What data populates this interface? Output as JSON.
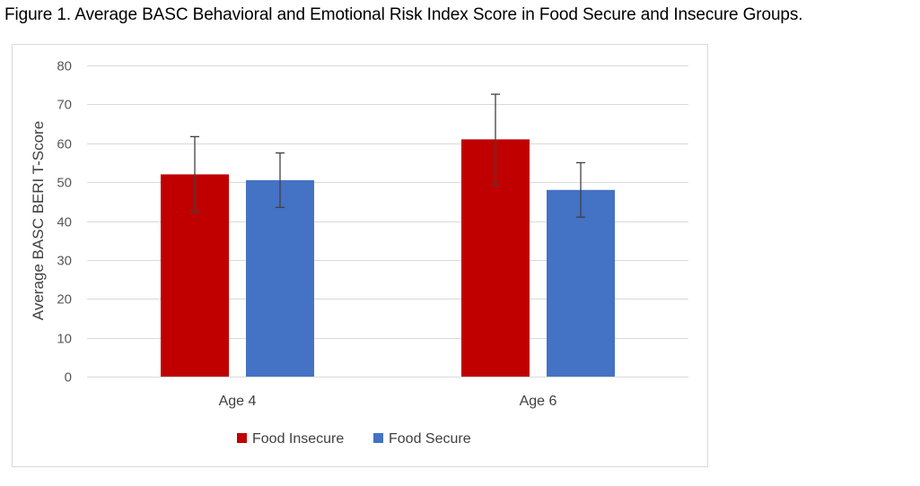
{
  "caption": "Figure 1. Average BASC Behavioral and Emotional Risk Index Score in Food Secure and Insecure Groups.",
  "chart_data": {
    "type": "bar",
    "categories": [
      "Age 4",
      "Age 6"
    ],
    "ylabel": "Average BASC BERI T-Score",
    "xlabel": "",
    "ylim": [
      0,
      80
    ],
    "yticks": [
      0,
      10,
      20,
      30,
      40,
      50,
      60,
      70,
      80
    ],
    "grid": true,
    "legend_position": "bottom",
    "series": [
      {
        "name": "Food Insecure",
        "color": "#c00000",
        "values": [
          52,
          61
        ],
        "error": [
          9.7,
          11.6
        ]
      },
      {
        "name": "Food Secure",
        "color": "#4472c4",
        "values": [
          50.5,
          48
        ],
        "error": [
          7,
          7
        ]
      }
    ]
  }
}
